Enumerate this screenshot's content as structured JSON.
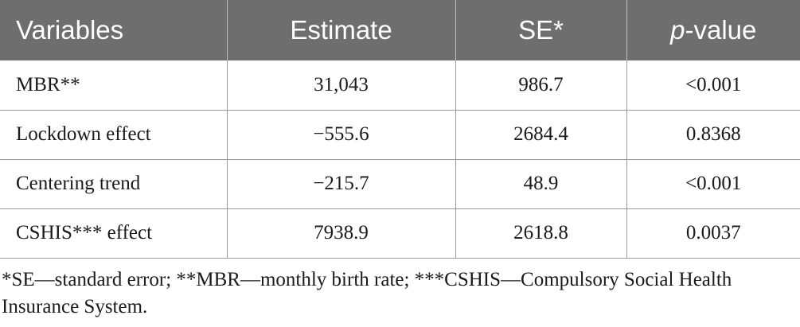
{
  "table": {
    "headers": {
      "variables": "Variables",
      "estimate": "Estimate",
      "se": "SE*",
      "pvalue_italic": "p",
      "pvalue_rest": "-value"
    },
    "rows": [
      {
        "variable": "MBR**",
        "estimate": "31,043",
        "se": "986.7",
        "pvalue": "<0.001"
      },
      {
        "variable": "Lockdown effect",
        "estimate": "−555.6",
        "se": "2684.4",
        "pvalue": "0.8368"
      },
      {
        "variable": "Centering trend",
        "estimate": "−215.7",
        "se": "48.9",
        "pvalue": "<0.001"
      },
      {
        "variable": "CSHIS*** effect",
        "estimate": "7938.9",
        "se": "2618.8",
        "pvalue": "0.0037"
      }
    ]
  },
  "footnote": "*SE—standard error; **MBR—monthly birth rate; ***CSHIS—Compulsory Social Health Insurance System.",
  "colors": {
    "header_background": "#6e6e6e",
    "header_text": "#ffffff",
    "grid_lines": "#9a9a9a",
    "body_text": "#1a1a1a"
  }
}
